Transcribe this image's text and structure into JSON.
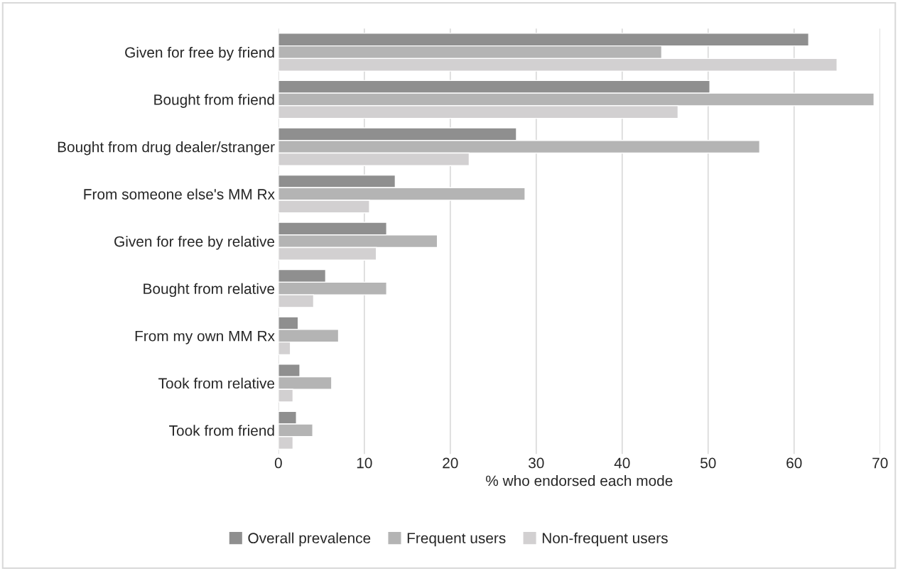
{
  "chart_data": {
    "type": "bar",
    "orientation": "horizontal",
    "categories": [
      "Given for free by friend",
      "Bought from friend",
      "Bought from drug dealer/stranger",
      "From someone else's MM Rx",
      "Given for free by relative",
      "Bought from relative",
      "From my own MM Rx",
      "Took from relative",
      "Took from friend"
    ],
    "series": [
      {
        "name": "Overall prevalence",
        "color": "#8f8f8f",
        "values": [
          61.7,
          50.2,
          27.7,
          13.6,
          12.6,
          5.5,
          2.3,
          2.5,
          2.1
        ]
      },
      {
        "name": "Frequent users",
        "color": "#b4b4b4",
        "values": [
          44.6,
          69.3,
          56.0,
          28.7,
          18.5,
          12.6,
          7.0,
          6.2,
          4.0
        ]
      },
      {
        "name": "Non-frequent users",
        "color": "#d2d0d1",
        "values": [
          65.0,
          46.5,
          22.2,
          10.6,
          11.4,
          4.1,
          1.4,
          1.7,
          1.7
        ]
      }
    ],
    "xlabel": "% who endorsed each mode",
    "xlim": [
      0,
      70
    ],
    "xticks": [
      0,
      10,
      20,
      30,
      40,
      50,
      60,
      70
    ],
    "grid": "x",
    "legend": "bottom"
  }
}
